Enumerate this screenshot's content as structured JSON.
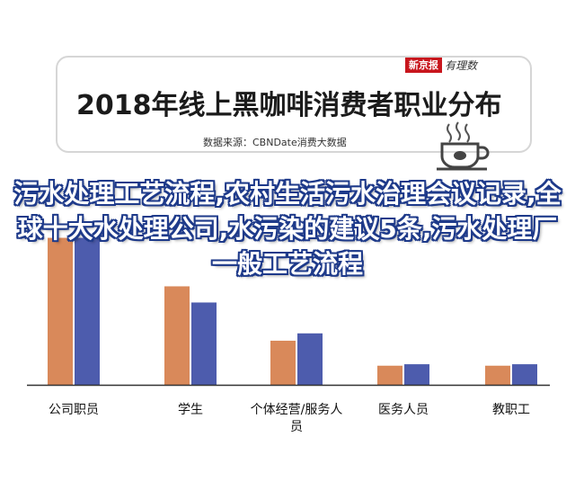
{
  "header": {
    "title": "2018年线上黑咖啡消费者职业分布",
    "source": "数据来源：CBNDate消费大数据",
    "logo_brand": "新京报",
    "logo_partner": "有理数",
    "icon": "coffee-cup-icon"
  },
  "overlay_text": "污水处理工艺流程,农村生活污水治理会议记录,全球十大水处理公司,水污染的建议5条,污水处理厂一般工艺流程",
  "colors": {
    "series_orange": "#d9895a",
    "series_blue": "#4d5cad",
    "brand_red": "#c8161d",
    "axis": "#333333"
  },
  "chart_data": {
    "type": "bar",
    "title": "2018年线上黑咖啡消费者职业分布",
    "categories": [
      "公司职员",
      "学生",
      "个体经营/服务人员",
      "医务人员",
      "教职工"
    ],
    "series": [
      {
        "values": [
          100,
          67,
          30,
          13,
          13
        ]
      },
      {
        "values": [
          100,
          56,
          35,
          14,
          14
        ]
      }
    ],
    "ylim": [
      0,
      115
    ],
    "grid": false,
    "legend": "none"
  }
}
